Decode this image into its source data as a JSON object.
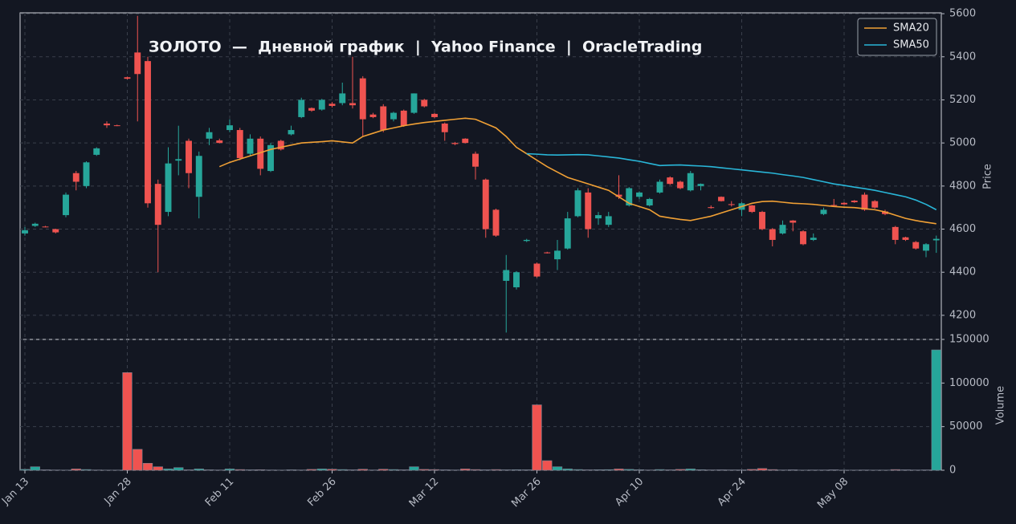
{
  "chart_data": [
    {
      "type": "candlestick",
      "title": "ЗОЛОТО  —  Дневной график  |  Yahoo Finance  |  OracleTrading",
      "ylabel": "Price",
      "categories": [
        "Jan 13",
        null,
        null,
        null,
        null,
        null,
        null,
        null,
        null,
        null,
        "Jan 28",
        null,
        null,
        null,
        null,
        null,
        null,
        null,
        null,
        null,
        "Feb 11",
        null,
        null,
        null,
        null,
        null,
        null,
        null,
        null,
        null,
        "Feb 26",
        null,
        null,
        null,
        null,
        null,
        null,
        null,
        null,
        null,
        "Mar 12",
        null,
        null,
        null,
        null,
        null,
        null,
        null,
        null,
        null,
        "Mar 26",
        null,
        null,
        null,
        null,
        null,
        null,
        null,
        null,
        null,
        "Apr 10",
        null,
        null,
        null,
        null,
        null,
        null,
        null,
        null,
        null,
        "Apr 24",
        null,
        null,
        null,
        null,
        null,
        null,
        null,
        null,
        null,
        "May 08",
        null,
        null,
        null,
        null,
        null,
        null,
        null,
        null,
        null
      ],
      "open": [
        4580,
        4615,
        4612,
        4600,
        4665,
        4860,
        4800,
        4945,
        5090,
        5082,
        5305,
        5420,
        5380,
        4810,
        4680,
        4918,
        5010,
        4750,
        5020,
        5012,
        5060,
        5060,
        4950,
        5020,
        4870,
        5010,
        5040,
        5120,
        5162,
        5155,
        5182,
        5185,
        5185,
        5300,
        5132,
        5170,
        5110,
        5150,
        5140,
        5200,
        5135,
        5090,
        5000,
        5020,
        4950,
        4830,
        4690,
        4360,
        4330,
        4545,
        4440,
        4492,
        4460,
        4510,
        4660,
        4770,
        4650,
        4620,
        4760,
        4710,
        4750,
        4710,
        4770,
        4840,
        4820,
        4780,
        4800,
        4702,
        4750,
        4716,
        4690,
        4710,
        4680,
        4600,
        4580,
        4640,
        4590,
        4550,
        4670,
        4712,
        4722,
        4732,
        4760,
        4730,
        4682,
        4610,
        4562,
        4540,
        4500,
        4548
      ],
      "high": [
        4610,
        4630,
        4615,
        4602,
        4770,
        4870,
        4915,
        4980,
        5100,
        5085,
        5308,
        5590,
        5400,
        4830,
        4980,
        5080,
        5020,
        4960,
        5070,
        5020,
        5110,
        5070,
        5040,
        5030,
        5000,
        5015,
        5080,
        5210,
        5165,
        5205,
        5190,
        5280,
        5400,
        5310,
        5140,
        5180,
        5145,
        5155,
        5230,
        5205,
        5140,
        5095,
        5005,
        5022,
        4960,
        4835,
        4695,
        4480,
        4405,
        4555,
        4445,
        4495,
        4550,
        4680,
        4790,
        4790,
        4680,
        4680,
        4850,
        4795,
        4775,
        4745,
        4830,
        4845,
        4825,
        4870,
        4812,
        4710,
        4752,
        4730,
        4725,
        4712,
        4685,
        4605,
        4640,
        4642,
        4595,
        4580,
        4700,
        4740,
        4725,
        4735,
        4770,
        4735,
        4690,
        4615,
        4565,
        4545,
        4535,
        4570
      ],
      "low": [
        4570,
        4610,
        4608,
        4580,
        4655,
        4780,
        4790,
        4940,
        5070,
        5078,
        5295,
        5100,
        4700,
        4400,
        4660,
        4850,
        4790,
        4650,
        4990,
        4998,
        5050,
        4920,
        4940,
        4850,
        4865,
        4965,
        5035,
        5115,
        5145,
        5150,
        5165,
        5175,
        5160,
        5030,
        5115,
        5050,
        5100,
        5075,
        5135,
        5165,
        5115,
        5010,
        4990,
        4998,
        4830,
        4560,
        4565,
        4120,
        4320,
        4540,
        4375,
        4487,
        4410,
        4505,
        4655,
        4560,
        4620,
        4610,
        4740,
        4705,
        4740,
        4705,
        4765,
        4805,
        4785,
        4775,
        4780,
        4695,
        4728,
        4705,
        4660,
        4675,
        4595,
        4520,
        4575,
        4590,
        4525,
        4545,
        4665,
        4705,
        4712,
        4722,
        4685,
        4695,
        4665,
        4530,
        4545,
        4505,
        4470,
        4490
      ],
      "close": [
        4595,
        4625,
        4610,
        4585,
        4760,
        4820,
        4910,
        4975,
        5082,
        5080,
        5298,
        5320,
        4720,
        4620,
        4905,
        4925,
        4860,
        4940,
        5050,
        5000,
        5082,
        4930,
        5020,
        4880,
        4990,
        4970,
        5060,
        5200,
        5150,
        5200,
        5172,
        5230,
        5175,
        5110,
        5120,
        5060,
        5140,
        5080,
        5230,
        5170,
        5120,
        5050,
        4995,
        5000,
        4890,
        4600,
        4570,
        4410,
        4400,
        4550,
        4380,
        4488,
        4500,
        4650,
        4780,
        4600,
        4665,
        4660,
        4750,
        4790,
        4770,
        4740,
        4820,
        4810,
        4790,
        4860,
        4810,
        4698,
        4730,
        4712,
        4720,
        4680,
        4600,
        4550,
        4620,
        4630,
        4530,
        4560,
        4690,
        4708,
        4715,
        4725,
        4690,
        4700,
        4670,
        4550,
        4550,
        4510,
        4530,
        4555
      ],
      "up_color": "#26a69a",
      "down_color": "#ef5350",
      "series": [
        {
          "name": "SMA20",
          "color": "#f0a035",
          "values": [
            null,
            null,
            null,
            null,
            null,
            null,
            null,
            null,
            null,
            null,
            null,
            null,
            null,
            null,
            null,
            null,
            null,
            null,
            null,
            4890,
            4910,
            4925,
            4940,
            4955,
            4970,
            4980,
            4990,
            5000,
            5003,
            5006,
            5010,
            5005,
            5000,
            5030,
            5045,
            5060,
            5070,
            5080,
            5088,
            5095,
            5100,
            5105,
            5110,
            5115,
            5110,
            5090,
            5070,
            5030,
            4980,
            4950,
            4920,
            4890,
            4865,
            4840,
            4825,
            4810,
            4795,
            4780,
            4750,
            4720,
            4705,
            4690,
            4660,
            4652,
            4645,
            4640,
            4650,
            4660,
            4675,
            4690,
            4705,
            4720,
            4728,
            4730,
            4725,
            4720,
            4718,
            4715,
            4710,
            4705,
            4702,
            4700,
            4695,
            4690,
            4680,
            4665,
            4650,
            4640,
            4632,
            4625
          ]
        },
        {
          "name": "SMA50",
          "color": "#29b6d8",
          "values": [
            null,
            null,
            null,
            null,
            null,
            null,
            null,
            null,
            null,
            null,
            null,
            null,
            null,
            null,
            null,
            null,
            null,
            null,
            null,
            null,
            null,
            null,
            null,
            null,
            null,
            null,
            null,
            null,
            null,
            null,
            null,
            null,
            null,
            null,
            null,
            null,
            null,
            null,
            null,
            null,
            null,
            null,
            null,
            null,
            null,
            null,
            null,
            null,
            null,
            4950,
            4948,
            4945,
            4944,
            4945,
            4946,
            4945,
            4940,
            4935,
            4930,
            4922,
            4915,
            4905,
            4895,
            4897,
            4898,
            4895,
            4893,
            4890,
            4885,
            4880,
            4875,
            4870,
            4865,
            4860,
            4853,
            4847,
            4840,
            4830,
            4820,
            4810,
            4803,
            4795,
            4788,
            4780,
            4770,
            4760,
            4750,
            4735,
            4715,
            4690
          ]
        }
      ],
      "ylim": [
        4088,
        5604
      ],
      "yticks": [
        4200,
        4400,
        4600,
        4800,
        5000,
        5200,
        5400,
        5600
      ],
      "grid": true,
      "legend": "upper right"
    },
    {
      "type": "bar",
      "ylabel": "Volume",
      "values": [
        1000,
        4000,
        500,
        300,
        200,
        1500,
        800,
        300,
        200,
        200,
        112000,
        24000,
        8000,
        4000,
        1500,
        3000,
        500,
        1500,
        500,
        300,
        1500,
        800,
        500,
        600,
        300,
        200,
        500,
        300,
        1000,
        1500,
        1200,
        800,
        500,
        1200,
        300,
        1200,
        800,
        500,
        4000,
        1000,
        800,
        500,
        300,
        1500,
        800,
        500,
        800,
        500,
        600,
        500,
        75000,
        11000,
        4000,
        1500,
        800,
        500,
        600,
        700,
        1500,
        1000,
        600,
        300,
        800,
        500,
        1000,
        1500,
        600,
        400,
        500,
        400,
        400,
        1000,
        2000,
        800,
        300,
        500,
        200,
        300,
        300,
        500,
        200,
        200,
        300,
        200,
        200,
        800,
        500,
        300,
        400,
        138000
      ],
      "ylim": [
        0,
        150000
      ],
      "yticks": [
        0,
        50000,
        100000,
        150000
      ],
      "grid": true
    }
  ]
}
